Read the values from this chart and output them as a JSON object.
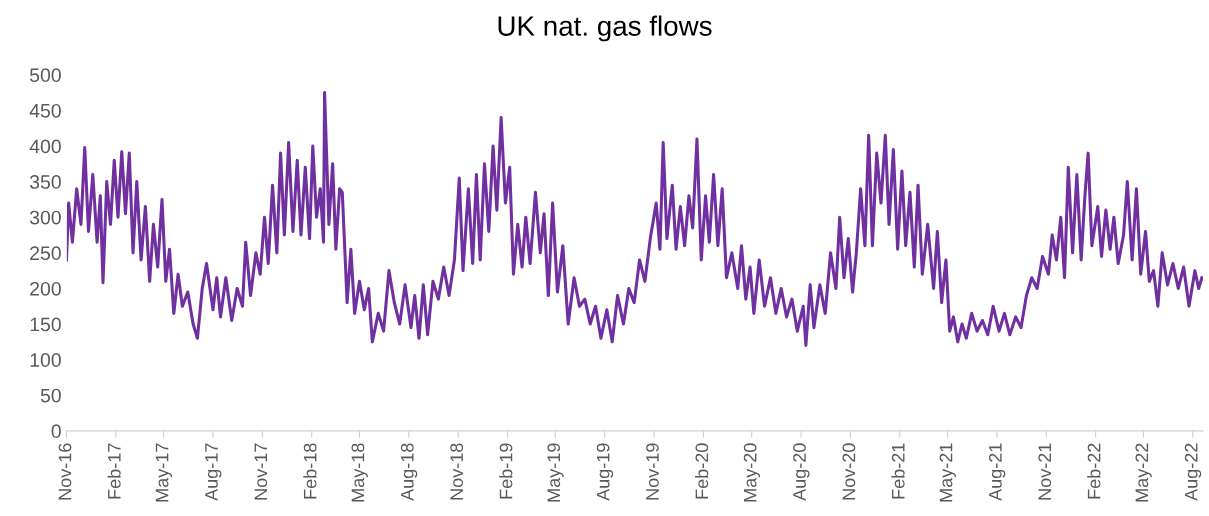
{
  "chart_data": {
    "type": "line",
    "title": "UK nat. gas flows",
    "x": [
      "2016-11-01",
      "2016-11-05",
      "2016-11-12",
      "2016-11-20",
      "2016-11-28",
      "2016-12-05",
      "2016-12-12",
      "2016-12-20",
      "2016-12-28",
      "2017-01-03",
      "2017-01-08",
      "2017-01-15",
      "2017-01-22",
      "2017-01-29",
      "2017-02-05",
      "2017-02-12",
      "2017-02-19",
      "2017-02-26",
      "2017-03-05",
      "2017-03-12",
      "2017-03-20",
      "2017-03-28",
      "2017-04-05",
      "2017-04-12",
      "2017-04-20",
      "2017-04-28",
      "2017-05-05",
      "2017-05-12",
      "2017-05-20",
      "2017-05-28",
      "2017-06-05",
      "2017-06-15",
      "2017-06-25",
      "2017-07-03",
      "2017-07-12",
      "2017-07-20",
      "2017-08-01",
      "2017-08-08",
      "2017-08-15",
      "2017-08-25",
      "2017-09-05",
      "2017-09-15",
      "2017-09-25",
      "2017-10-01",
      "2017-10-10",
      "2017-10-20",
      "2017-10-28",
      "2017-11-05",
      "2017-11-12",
      "2017-11-20",
      "2017-11-28",
      "2017-12-05",
      "2017-12-12",
      "2017-12-20",
      "2017-12-28",
      "2018-01-05",
      "2018-01-12",
      "2018-01-20",
      "2018-01-28",
      "2018-02-03",
      "2018-02-10",
      "2018-02-17",
      "2018-02-23",
      "2018-02-25",
      "2018-03-05",
      "2018-03-12",
      "2018-03-18",
      "2018-03-25",
      "2018-03-30",
      "2018-04-08",
      "2018-04-15",
      "2018-04-22",
      "2018-05-01",
      "2018-05-10",
      "2018-05-18",
      "2018-05-25",
      "2018-06-05",
      "2018-06-15",
      "2018-06-25",
      "2018-07-05",
      "2018-07-15",
      "2018-07-25",
      "2018-08-05",
      "2018-08-12",
      "2018-08-20",
      "2018-08-28",
      "2018-09-05",
      "2018-09-15",
      "2018-09-25",
      "2018-10-05",
      "2018-10-15",
      "2018-10-25",
      "2018-11-03",
      "2018-11-10",
      "2018-11-20",
      "2018-11-28",
      "2018-12-05",
      "2018-12-12",
      "2018-12-20",
      "2018-12-28",
      "2019-01-05",
      "2019-01-12",
      "2019-01-20",
      "2019-01-28",
      "2019-02-05",
      "2019-02-12",
      "2019-02-20",
      "2019-02-28",
      "2019-03-07",
      "2019-03-15",
      "2019-03-25",
      "2019-04-03",
      "2019-04-10",
      "2019-04-18",
      "2019-04-26",
      "2019-05-05",
      "2019-05-15",
      "2019-05-25",
      "2019-06-05",
      "2019-06-15",
      "2019-06-25",
      "2019-07-05",
      "2019-07-15",
      "2019-07-25",
      "2019-08-05",
      "2019-08-15",
      "2019-08-25",
      "2019-09-05",
      "2019-09-15",
      "2019-09-25",
      "2019-10-05",
      "2019-10-15",
      "2019-10-25",
      "2019-11-05",
      "2019-11-12",
      "2019-11-18",
      "2019-11-25",
      "2019-12-05",
      "2019-12-12",
      "2019-12-20",
      "2019-12-28",
      "2020-01-05",
      "2020-01-12",
      "2020-01-20",
      "2020-01-28",
      "2020-02-05",
      "2020-02-12",
      "2020-02-20",
      "2020-02-28",
      "2020-03-07",
      "2020-03-15",
      "2020-03-25",
      "2020-04-05",
      "2020-04-12",
      "2020-04-20",
      "2020-04-28",
      "2020-05-05",
      "2020-05-15",
      "2020-05-25",
      "2020-06-05",
      "2020-06-15",
      "2020-06-25",
      "2020-07-05",
      "2020-07-15",
      "2020-07-25",
      "2020-08-05",
      "2020-08-10",
      "2020-08-18",
      "2020-08-25",
      "2020-09-05",
      "2020-09-15",
      "2020-09-25",
      "2020-10-05",
      "2020-10-12",
      "2020-10-20",
      "2020-10-28",
      "2020-11-05",
      "2020-11-12",
      "2020-11-20",
      "2020-11-28",
      "2020-12-05",
      "2020-12-12",
      "2020-12-20",
      "2020-12-28",
      "2021-01-05",
      "2021-01-12",
      "2021-01-20",
      "2021-01-28",
      "2021-02-05",
      "2021-02-12",
      "2021-02-20",
      "2021-02-28",
      "2021-03-07",
      "2021-03-15",
      "2021-03-25",
      "2021-04-05",
      "2021-04-12",
      "2021-04-20",
      "2021-04-28",
      "2021-05-05",
      "2021-05-12",
      "2021-05-20",
      "2021-05-28",
      "2021-06-05",
      "2021-06-15",
      "2021-06-25",
      "2021-07-05",
      "2021-07-15",
      "2021-07-25",
      "2021-08-05",
      "2021-08-15",
      "2021-08-25",
      "2021-09-05",
      "2021-09-15",
      "2021-09-25",
      "2021-10-05",
      "2021-10-15",
      "2021-10-25",
      "2021-11-05",
      "2021-11-12",
      "2021-11-20",
      "2021-11-28",
      "2021-12-05",
      "2021-12-12",
      "2021-12-20",
      "2021-12-28",
      "2022-01-05",
      "2022-01-12",
      "2022-01-18",
      "2022-01-25",
      "2022-02-05",
      "2022-02-12",
      "2022-02-20",
      "2022-02-28",
      "2022-03-07",
      "2022-03-15",
      "2022-03-25",
      "2022-04-01",
      "2022-04-10",
      "2022-04-18",
      "2022-04-26",
      "2022-05-05",
      "2022-05-12",
      "2022-05-20",
      "2022-05-28",
      "2022-06-05",
      "2022-06-15",
      "2022-06-25",
      "2022-07-05",
      "2022-07-15",
      "2022-07-25",
      "2022-08-05",
      "2022-08-12",
      "2022-08-18"
    ],
    "series": [
      {
        "color": "#7030a0",
        "values": [
          240,
          320,
          265,
          340,
          290,
          398,
          280,
          360,
          265,
          330,
          208,
          350,
          290,
          380,
          300,
          392,
          305,
          390,
          250,
          350,
          240,
          315,
          210,
          290,
          230,
          325,
          210,
          255,
          165,
          220,
          175,
          195,
          150,
          130,
          200,
          235,
          170,
          215,
          160,
          215,
          155,
          200,
          175,
          265,
          190,
          250,
          220,
          300,
          235,
          345,
          250,
          390,
          275,
          405,
          280,
          380,
          275,
          370,
          270,
          400,
          300,
          340,
          265,
          475,
          290,
          375,
          255,
          340,
          335,
          180,
          255,
          165,
          210,
          170,
          200,
          125,
          165,
          140,
          225,
          180,
          150,
          205,
          145,
          190,
          130,
          205,
          135,
          210,
          185,
          230,
          190,
          240,
          355,
          225,
          340,
          235,
          360,
          240,
          375,
          280,
          400,
          310,
          440,
          320,
          370,
          220,
          290,
          230,
          300,
          235,
          335,
          250,
          305,
          190,
          320,
          195,
          260,
          150,
          215,
          175,
          185,
          150,
          175,
          130,
          170,
          125,
          190,
          150,
          200,
          180,
          240,
          210,
          270,
          320,
          255,
          405,
          270,
          345,
          255,
          315,
          260,
          330,
          285,
          410,
          240,
          330,
          265,
          360,
          260,
          340,
          215,
          250,
          200,
          260,
          185,
          230,
          165,
          240,
          175,
          215,
          165,
          200,
          160,
          185,
          140,
          175,
          120,
          205,
          145,
          205,
          165,
          250,
          200,
          300,
          215,
          270,
          195,
          250,
          340,
          260,
          415,
          260,
          390,
          320,
          415,
          290,
          395,
          255,
          365,
          260,
          335,
          230,
          345,
          220,
          290,
          200,
          280,
          180,
          240,
          140,
          160,
          125,
          150,
          130,
          165,
          140,
          155,
          135,
          175,
          140,
          165,
          135,
          160,
          145,
          190,
          215,
          200,
          245,
          220,
          275,
          240,
          300,
          215,
          370,
          250,
          360,
          240,
          330,
          390,
          260,
          315,
          245,
          310,
          255,
          300,
          235,
          275,
          350,
          240,
          340,
          220,
          280,
          210,
          225,
          175,
          250,
          205,
          235,
          200,
          230,
          175,
          225,
          200,
          215
        ]
      }
    ],
    "xlim": [
      "2016-11-01",
      "2022-08-20"
    ],
    "xticks": [
      {
        "value": "2016-11-01",
        "label": "Nov-16"
      },
      {
        "value": "2017-02-01",
        "label": "Feb-17"
      },
      {
        "value": "2017-05-01",
        "label": "May-17"
      },
      {
        "value": "2017-08-01",
        "label": "Aug-17"
      },
      {
        "value": "2017-11-01",
        "label": "Nov-17"
      },
      {
        "value": "2018-02-01",
        "label": "Feb-18"
      },
      {
        "value": "2018-05-01",
        "label": "May-18"
      },
      {
        "value": "2018-08-01",
        "label": "Aug-18"
      },
      {
        "value": "2018-11-01",
        "label": "Nov-18"
      },
      {
        "value": "2019-02-01",
        "label": "Feb-19"
      },
      {
        "value": "2019-05-01",
        "label": "May-19"
      },
      {
        "value": "2019-08-01",
        "label": "Aug-19"
      },
      {
        "value": "2019-11-01",
        "label": "Nov-19"
      },
      {
        "value": "2020-02-01",
        "label": "Feb-20"
      },
      {
        "value": "2020-05-01",
        "label": "May-20"
      },
      {
        "value": "2020-08-01",
        "label": "Aug-20"
      },
      {
        "value": "2020-11-01",
        "label": "Nov-20"
      },
      {
        "value": "2021-02-01",
        "label": "Feb-21"
      },
      {
        "value": "2021-05-01",
        "label": "May-21"
      },
      {
        "value": "2021-08-01",
        "label": "Aug-21"
      },
      {
        "value": "2021-11-01",
        "label": "Nov-21"
      },
      {
        "value": "2022-02-01",
        "label": "Feb-22"
      },
      {
        "value": "2022-05-01",
        "label": "May-22"
      },
      {
        "value": "2022-08-01",
        "label": "Aug-22"
      }
    ],
    "ylim": [
      0,
      500
    ],
    "yticks": [
      0,
      50,
      100,
      150,
      200,
      250,
      300,
      350,
      400,
      450,
      500
    ],
    "grid": false
  }
}
